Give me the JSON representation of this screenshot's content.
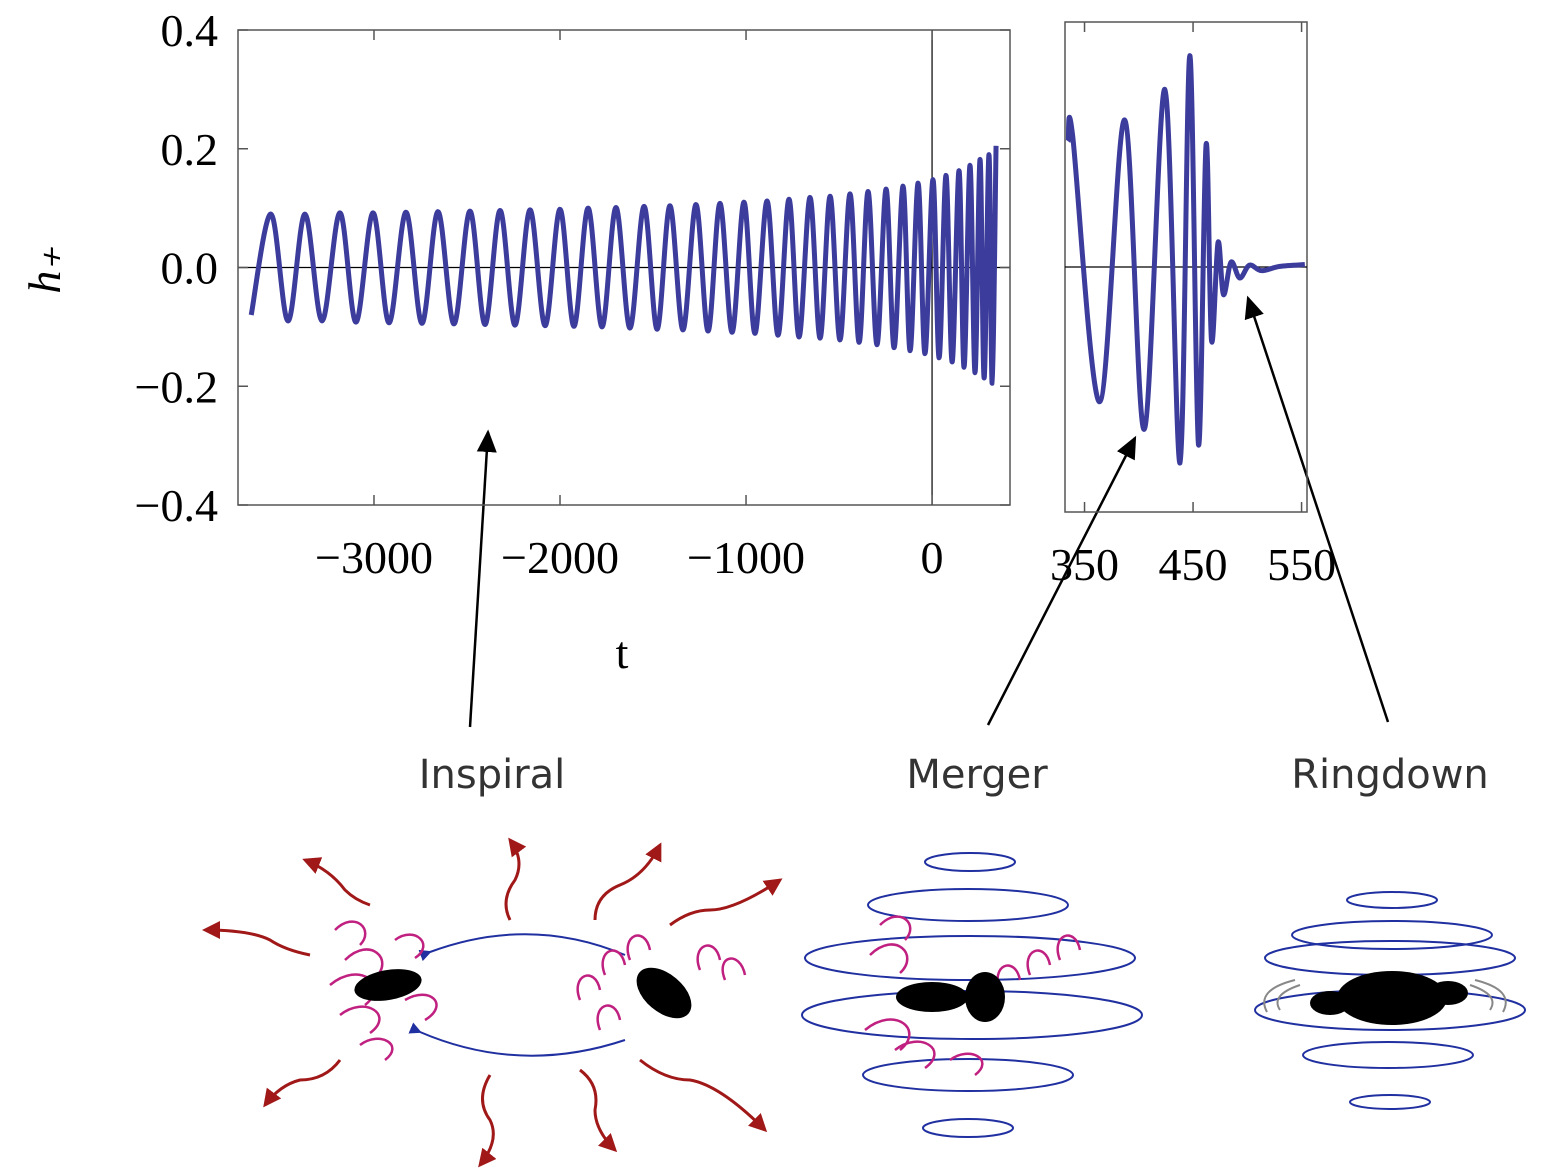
{
  "chart_data": [
    {
      "type": "line",
      "y_label": "h₊",
      "x_label": "t",
      "color": "#3c3c9c",
      "xlim": [
        -3731,
        419
      ],
      "ylim": [
        -0.4,
        0.4
      ],
      "xticks": [
        {
          "value": -3000,
          "label": "−3000"
        },
        {
          "value": -2000,
          "label": "−2000"
        },
        {
          "value": -1000,
          "label": "−1000"
        },
        0
      ],
      "yticks": [
        0.4,
        0.2,
        {
          "value": 0,
          "label": "0.0"
        },
        {
          "value": -0.2,
          "label": "−0.2"
        },
        {
          "value": -0.4,
          "label": "−0.4"
        }
      ],
      "x": [
        -3660,
        -3554,
        -3462,
        -3371,
        -3279,
        -3183,
        -3097,
        -3005,
        -2919,
        -2828,
        -2742,
        -2656,
        -2570,
        -2484,
        -2403,
        -2322,
        -2242,
        -2161,
        -2080,
        -2000,
        -1925,
        -1849,
        -1774,
        -1699,
        -1624,
        -1548,
        -1478,
        -1409,
        -1339,
        -1269,
        -1204,
        -1140,
        -1075,
        -1011,
        -952,
        -887,
        -828,
        -769,
        -715,
        -656,
        -602,
        -548,
        -495,
        -441,
        -392,
        -344,
        -296,
        -247,
        -204,
        -156,
        -118,
        -75,
        -38,
        5,
        38,
        75,
        108,
        145,
        172,
        204,
        231,
        258,
        280,
        306,
        323,
        344
      ],
      "values": [
        -0.08,
        0.09,
        -0.09,
        0.09,
        -0.09,
        0.092,
        -0.092,
        0.092,
        -0.093,
        0.093,
        -0.094,
        0.094,
        -0.095,
        0.095,
        -0.096,
        0.096,
        -0.097,
        0.097,
        -0.098,
        0.098,
        -0.099,
        0.1,
        -0.1,
        0.101,
        -0.102,
        0.103,
        -0.104,
        0.104,
        -0.105,
        0.106,
        -0.107,
        0.108,
        -0.109,
        0.11,
        -0.111,
        0.112,
        -0.114,
        0.115,
        -0.117,
        0.118,
        -0.119,
        0.12,
        -0.122,
        0.124,
        -0.126,
        0.128,
        -0.13,
        0.132,
        -0.135,
        0.137,
        -0.14,
        0.142,
        -0.145,
        0.148,
        -0.152,
        0.155,
        -0.159,
        0.163,
        -0.168,
        0.172,
        -0.177,
        0.182,
        -0.186,
        0.19,
        -0.195,
        0.205
      ]
    },
    {
      "type": "line",
      "color": "#3c3c9c",
      "xlim": [
        332,
        555
      ],
      "ylim": [
        -0.4,
        0.4
      ],
      "xticks": [
        350,
        450,
        550
      ],
      "x": [
        335,
        339,
        364,
        387,
        405,
        424,
        438,
        447,
        455,
        462,
        467,
        473,
        478,
        485,
        493,
        502,
        513,
        530,
        553
      ],
      "values": [
        0.205,
        0.215,
        -0.22,
        0.24,
        -0.265,
        0.29,
        -0.32,
        0.345,
        -0.29,
        0.2,
        -0.12,
        0.04,
        -0.045,
        0.008,
        -0.018,
        0.003,
        -0.006,
        0.001,
        0.004
      ]
    }
  ],
  "annotations": [
    "Inspiral",
    "Merger",
    "Ringdown"
  ]
}
